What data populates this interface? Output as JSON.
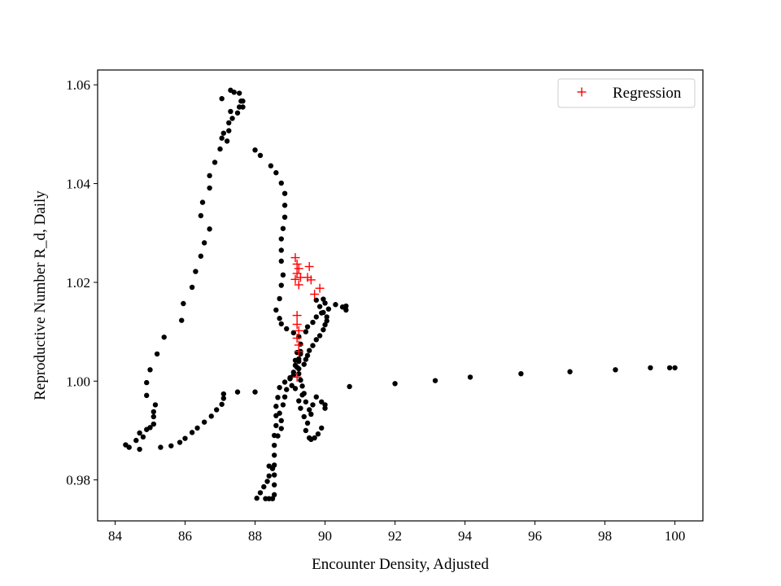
{
  "chart_data": {
    "type": "scatter",
    "title": "",
    "xlabel": "Encounter Density, Adjusted",
    "ylabel": "Reproductive Number R_d, Daily",
    "xlim": [
      83.5,
      100.8
    ],
    "ylim": [
      0.9717,
      1.063
    ],
    "xticks": [
      84,
      86,
      88,
      90,
      92,
      94,
      96,
      98,
      100
    ],
    "yticks": [
      0.98,
      1.0,
      1.02,
      1.04,
      1.06
    ],
    "xtick_labels": [
      "84",
      "86",
      "88",
      "90",
      "92",
      "94",
      "96",
      "98",
      "100"
    ],
    "ytick_labels": [
      "0.98",
      "1.00",
      "1.02",
      "1.04",
      "1.06"
    ],
    "grid": false,
    "legend": {
      "position": "top-right",
      "entries": [
        "Regression"
      ]
    },
    "series": [
      {
        "marker": "dot",
        "color": "#000000",
        "points": [
          [
            84.3,
            0.9871
          ],
          [
            84.4,
            0.9866
          ],
          [
            84.6,
            0.988
          ],
          [
            84.7,
            0.9895
          ],
          [
            84.8,
            0.9887
          ],
          [
            84.7,
            0.9862
          ],
          [
            84.9,
            0.9902
          ],
          [
            85.0,
            0.9906
          ],
          [
            85.1,
            0.9913
          ],
          [
            85.1,
            0.9928
          ],
          [
            85.1,
            0.9938
          ],
          [
            85.15,
            0.9952
          ],
          [
            84.9,
            0.9971
          ],
          [
            84.9,
            0.9997
          ],
          [
            85.0,
            1.0023
          ],
          [
            85.2,
            1.0055
          ],
          [
            85.4,
            1.0089
          ],
          [
            85.9,
            1.0123
          ],
          [
            85.95,
            1.0157
          ],
          [
            86.2,
            1.019
          ],
          [
            86.3,
            1.0222
          ],
          [
            86.45,
            1.0253
          ],
          [
            86.55,
            1.028
          ],
          [
            86.7,
            1.0308
          ],
          [
            86.45,
            1.0335
          ],
          [
            86.5,
            1.0362
          ],
          [
            86.7,
            1.0391
          ],
          [
            86.7,
            1.0416
          ],
          [
            86.85,
            1.0443
          ],
          [
            87.0,
            1.047
          ],
          [
            87.05,
            1.0492
          ],
          [
            87.2,
            1.0486
          ],
          [
            87.25,
            1.0507
          ],
          [
            87.1,
            1.0502
          ],
          [
            87.25,
            1.0523
          ],
          [
            87.35,
            1.0532
          ],
          [
            87.3,
            1.0546
          ],
          [
            87.5,
            1.0543
          ],
          [
            87.55,
            1.0555
          ],
          [
            87.65,
            1.0567
          ],
          [
            87.3,
            1.0589
          ],
          [
            87.4,
            1.0585
          ],
          [
            87.55,
            1.0583
          ],
          [
            87.6,
            1.0567
          ],
          [
            87.65,
            1.0555
          ],
          [
            87.05,
            1.0572
          ],
          [
            85.3,
            0.9866
          ],
          [
            85.6,
            0.9869
          ],
          [
            85.85,
            0.9876
          ],
          [
            86.0,
            0.9884
          ],
          [
            86.2,
            0.9896
          ],
          [
            86.35,
            0.9905
          ],
          [
            86.55,
            0.9917
          ],
          [
            86.75,
            0.9929
          ],
          [
            86.9,
            0.9942
          ],
          [
            87.05,
            0.9953
          ],
          [
            87.1,
            0.9965
          ],
          [
            87.1,
            0.9974
          ],
          [
            87.5,
            0.9978
          ],
          [
            88.0,
            0.9978
          ],
          [
            88.0,
            1.0468
          ],
          [
            88.15,
            1.0457
          ],
          [
            88.45,
            1.0436
          ],
          [
            88.6,
            1.0422
          ],
          [
            88.75,
            1.0401
          ],
          [
            88.85,
            1.038
          ],
          [
            88.85,
            1.0356
          ],
          [
            88.85,
            1.0332
          ],
          [
            88.8,
            1.0309
          ],
          [
            88.75,
            1.0288
          ],
          [
            88.75,
            1.0265
          ],
          [
            88.75,
            1.0243
          ],
          [
            88.8,
            1.0215
          ],
          [
            88.75,
            1.0194
          ],
          [
            88.7,
            1.0167
          ],
          [
            88.6,
            1.0144
          ],
          [
            88.7,
            1.0127
          ],
          [
            88.75,
            1.0116
          ],
          [
            88.9,
            1.0106
          ],
          [
            89.1,
            1.0098
          ],
          [
            89.25,
            1.009
          ],
          [
            89.3,
            1.0075
          ],
          [
            89.3,
            1.006
          ],
          [
            89.25,
            1.0045
          ],
          [
            89.15,
            1.0032
          ],
          [
            89.1,
            1.0018
          ],
          [
            89.0,
            1.0005
          ],
          [
            88.85,
            0.9998
          ],
          [
            88.7,
            0.9987
          ],
          [
            88.65,
            0.9967
          ],
          [
            88.6,
            0.9949
          ],
          [
            88.6,
            0.993
          ],
          [
            88.6,
            0.991
          ],
          [
            88.55,
            0.989
          ],
          [
            88.55,
            0.987
          ],
          [
            88.55,
            0.985
          ],
          [
            88.55,
            0.983
          ],
          [
            88.55,
            0.981
          ],
          [
            88.55,
            0.979
          ],
          [
            88.55,
            0.977
          ],
          [
            88.5,
            0.9762
          ],
          [
            88.4,
            0.9762
          ],
          [
            88.3,
            0.9762
          ],
          [
            88.05,
            0.9763
          ],
          [
            88.15,
            0.9774
          ],
          [
            88.25,
            0.9786
          ],
          [
            88.35,
            0.9797
          ],
          [
            88.4,
            0.9808
          ],
          [
            88.5,
            0.9823
          ],
          [
            88.4,
            0.9828
          ],
          [
            88.65,
            0.9889
          ],
          [
            88.75,
            0.9904
          ],
          [
            88.75,
            0.992
          ],
          [
            88.7,
            0.9935
          ],
          [
            88.8,
            0.9952
          ],
          [
            88.85,
            0.9968
          ],
          [
            88.9,
            0.9983
          ],
          [
            89.0,
            1.0005
          ],
          [
            89.1,
            1.0012
          ],
          [
            89.25,
            1.0025
          ],
          [
            89.4,
            1.0034
          ],
          [
            89.45,
            1.0044
          ],
          [
            89.5,
            1.0052
          ],
          [
            89.55,
            1.0062
          ],
          [
            89.65,
            1.0072
          ],
          [
            89.75,
            1.0084
          ],
          [
            89.85,
            1.0092
          ],
          [
            89.95,
            1.0104
          ],
          [
            90.0,
            1.0114
          ],
          [
            90.05,
            1.0122
          ],
          [
            90.05,
            1.013
          ],
          [
            89.95,
            1.0139
          ],
          [
            89.85,
            1.0151
          ],
          [
            89.75,
            1.0164
          ],
          [
            89.95,
            1.0166
          ],
          [
            90.1,
            1.0146
          ],
          [
            90.3,
            1.0155
          ],
          [
            90.5,
            1.015
          ],
          [
            90.6,
            1.0144
          ],
          [
            90.6,
            1.0152
          ],
          [
            90.0,
            1.0158
          ],
          [
            89.9,
            1.0138
          ],
          [
            89.75,
            1.013
          ],
          [
            89.65,
            1.0119
          ],
          [
            89.5,
            1.011
          ],
          [
            89.45,
            1.01
          ],
          [
            89.2,
            1.0058
          ],
          [
            89.15,
            1.0042
          ],
          [
            89.2,
            1.0028
          ],
          [
            89.25,
            1.0015
          ],
          [
            89.3,
            1.0002
          ],
          [
            89.35,
            0.999
          ],
          [
            89.4,
            0.9975
          ],
          [
            89.45,
            0.9958
          ],
          [
            89.55,
            0.9942
          ],
          [
            89.6,
            0.9933
          ],
          [
            89.65,
            0.9952
          ],
          [
            89.75,
            0.9968
          ],
          [
            89.9,
            0.9958
          ],
          [
            90.0,
            0.9952
          ],
          [
            90.0,
            0.9945
          ],
          [
            89.5,
            0.9915
          ],
          [
            89.45,
            0.99
          ],
          [
            89.55,
            0.9885
          ],
          [
            89.6,
            0.9882
          ],
          [
            89.7,
            0.9885
          ],
          [
            89.8,
            0.9893
          ],
          [
            89.9,
            0.9905
          ],
          [
            89.4,
            0.9928
          ],
          [
            89.3,
            0.9945
          ],
          [
            89.25,
            0.996
          ],
          [
            89.35,
            0.9972
          ],
          [
            89.15,
            0.9985
          ],
          [
            89.05,
            0.9991
          ],
          [
            89.0,
            1.0007
          ],
          [
            89.25,
            1.004
          ],
          [
            89.3,
            1.0055
          ],
          [
            90.7,
            0.9989
          ],
          [
            92.0,
            0.9995
          ],
          [
            93.15,
            1.0001
          ],
          [
            94.15,
            1.0008
          ],
          [
            95.6,
            1.0015
          ],
          [
            97.0,
            1.0019
          ],
          [
            98.3,
            1.0023
          ],
          [
            99.3,
            1.0027
          ],
          [
            99.85,
            1.0027
          ],
          [
            100.0,
            1.0027
          ]
        ]
      },
      {
        "name": "Regression",
        "marker": "plus",
        "color": "#ff0000",
        "points": [
          [
            89.15,
            1.025
          ],
          [
            89.2,
            1.0237
          ],
          [
            89.25,
            1.0228
          ],
          [
            89.2,
            1.0218
          ],
          [
            89.3,
            1.021
          ],
          [
            89.15,
            1.0206
          ],
          [
            89.25,
            1.0195
          ],
          [
            89.55,
            1.0232
          ],
          [
            89.5,
            1.021
          ],
          [
            89.6,
            1.0205
          ],
          [
            89.85,
            1.0188
          ],
          [
            89.7,
            1.0176
          ],
          [
            89.2,
            1.0133
          ],
          [
            89.2,
            1.0115
          ],
          [
            89.25,
            1.0102
          ],
          [
            89.2,
            1.0087
          ],
          [
            89.25,
            1.0073
          ],
          [
            89.25,
            1.006
          ],
          [
            89.2,
            1.0008
          ]
        ]
      }
    ]
  }
}
